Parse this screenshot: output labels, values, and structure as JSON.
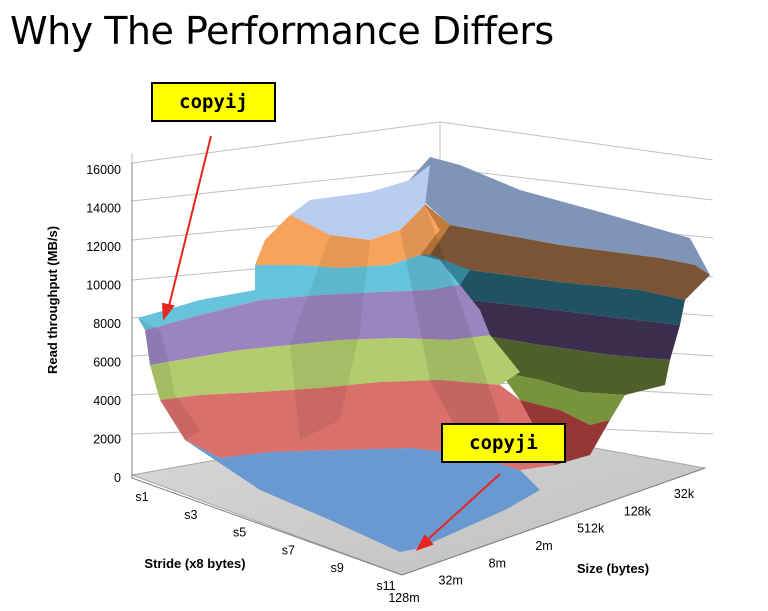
{
  "slide": {
    "title": "Why The Performance Differs"
  },
  "chart_data": {
    "type": "surface3d",
    "title": "",
    "zlabel": "Read throughput (MB/s)",
    "xlabel": "Stride (x8 bytes)",
    "ylabel": "Size (bytes)",
    "zlim": [
      0,
      16000
    ],
    "z_ticks": [
      "0",
      "2000",
      "4000",
      "6000",
      "8000",
      "10000",
      "12000",
      "14000",
      "16000"
    ],
    "z_tick_values": [
      0,
      2000,
      4000,
      6000,
      8000,
      10000,
      12000,
      14000,
      16000
    ],
    "stride_ticks": [
      "s1",
      "s3",
      "s5",
      "s7",
      "s9",
      "s11"
    ],
    "size_ticks": [
      "32k",
      "128k",
      "512k",
      "2m",
      "8m",
      "32m",
      "128m"
    ],
    "color_bands": [
      {
        "from": 0,
        "to": 2000,
        "color": "#4f81bd"
      },
      {
        "from": 2000,
        "to": 4000,
        "color": "#c0504d"
      },
      {
        "from": 4000,
        "to": 6000,
        "color": "#9bbb59"
      },
      {
        "from": 6000,
        "to": 8000,
        "color": "#8064a2"
      },
      {
        "from": 8000,
        "to": 10000,
        "color": "#4bacc6"
      },
      {
        "from": 10000,
        "to": 12000,
        "color": "#f79646"
      },
      {
        "from": 12000,
        "to": 14000,
        "color": "#a9c4eb"
      },
      {
        "from": 14000,
        "to": 16000,
        "color": "#95b3d7"
      }
    ],
    "annotations": [
      {
        "label": "copyij",
        "x_stride": "s1",
        "y_size": "128m",
        "z": 8000
      },
      {
        "label": "copyji",
        "x_stride": "s11",
        "y_size": "128m",
        "z": 400
      }
    ]
  }
}
